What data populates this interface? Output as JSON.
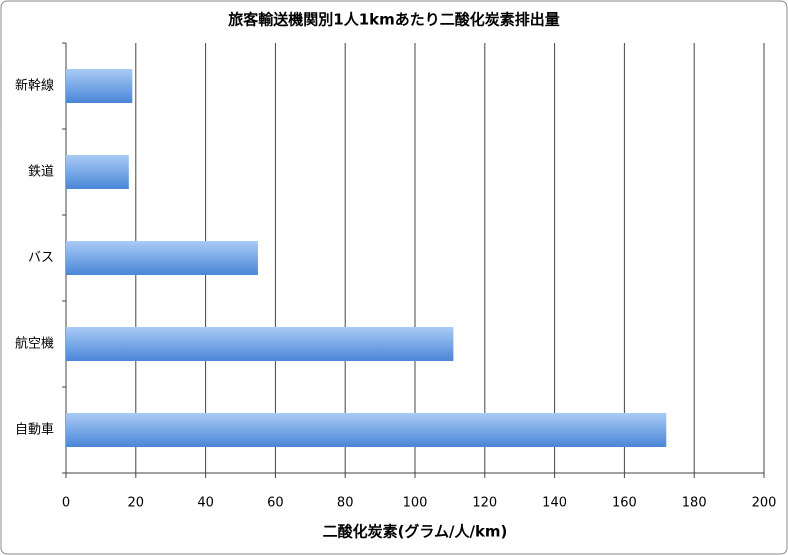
{
  "chart_data": {
    "type": "bar",
    "orientation": "horizontal",
    "title": "旅客輸送機関別1人1kmあたり二酸化炭素排出量",
    "x_label": "二酸化炭素(グラム/人/km)",
    "categories": [
      "新幹線",
      "鉄道",
      "バス",
      "航空機",
      "自動車"
    ],
    "values": [
      19,
      18,
      55,
      111,
      172
    ],
    "color": "#4a86d8",
    "xlim": [
      0,
      200
    ],
    "xticks": [
      0,
      20,
      40,
      60,
      80,
      100,
      120,
      140,
      160,
      180,
      200
    ],
    "grid": true
  }
}
